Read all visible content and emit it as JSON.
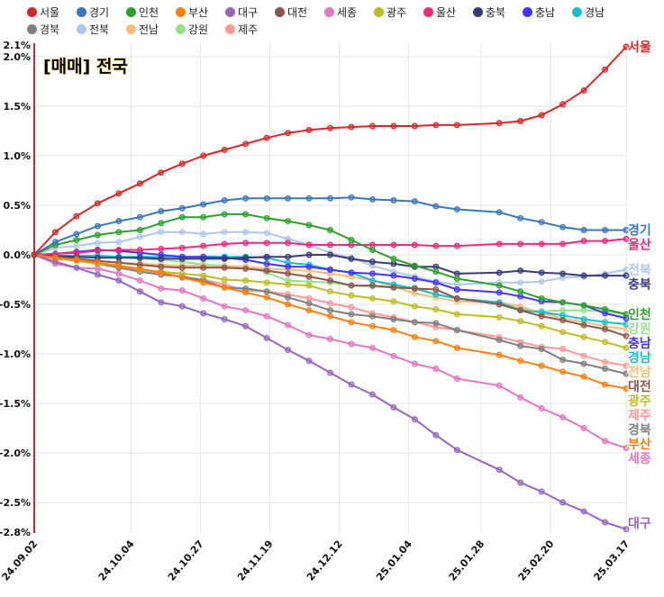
{
  "chart_data": {
    "type": "line",
    "title": "[매매] 전국",
    "ylim": [
      -2.8,
      2.1
    ],
    "y_ticks": [
      "2.1%",
      "2.0%",
      "1.5%",
      "1.0%",
      "0.5%",
      "0.0%",
      "-0.5%",
      "-1.0%",
      "-1.5%",
      "-2.0%",
      "-2.5%",
      "-2.8%"
    ],
    "y_tick_values": [
      2.1,
      2.0,
      1.5,
      1.0,
      0.5,
      0.0,
      -0.5,
      -1.0,
      -1.5,
      -2.0,
      -2.5,
      -2.8
    ],
    "x_ticks": [
      "24.09.02",
      "24.10.04",
      "24.10.27",
      "24.11.19",
      "24.12.12",
      "25.01.04",
      "25.01.28",
      "25.02.20",
      "25.03.17"
    ],
    "grid": true,
    "legend_position": "top",
    "x": [
      "24.09.02",
      "24.09.09",
      "24.09.16",
      "24.09.23",
      "24.09.30",
      "24.10.07",
      "24.10.14",
      "24.10.21",
      "24.10.28",
      "24.11.04",
      "24.11.11",
      "24.11.18",
      "24.11.25",
      "24.12.02",
      "24.12.09",
      "24.12.16",
      "24.12.23",
      "24.12.30",
      "25.01.06",
      "25.01.13",
      "25.01.20",
      "25.02.03",
      "25.02.10",
      "25.02.17",
      "25.02.24",
      "25.03.03",
      "25.03.10",
      "25.03.17"
    ],
    "series": [
      {
        "name": "서울",
        "color": "#d62728",
        "values": [
          0,
          0.23,
          0.39,
          0.52,
          0.62,
          0.72,
          0.83,
          0.92,
          1.0,
          1.06,
          1.12,
          1.18,
          1.23,
          1.26,
          1.28,
          1.29,
          1.3,
          1.3,
          1.3,
          1.31,
          1.31,
          1.33,
          1.35,
          1.41,
          1.52,
          1.66,
          1.87,
          2.1
        ]
      },
      {
        "name": "경기",
        "color": "#3a78b5",
        "values": [
          0,
          0.13,
          0.21,
          0.29,
          0.34,
          0.38,
          0.44,
          0.47,
          0.51,
          0.55,
          0.57,
          0.57,
          0.57,
          0.57,
          0.57,
          0.58,
          0.56,
          0.55,
          0.54,
          0.49,
          0.46,
          0.43,
          0.37,
          0.33,
          0.28,
          0.25,
          0.25,
          0.25
        ]
      },
      {
        "name": "인천",
        "color": "#2ca02c",
        "values": [
          0,
          0.1,
          0.15,
          0.2,
          0.23,
          0.25,
          0.32,
          0.38,
          0.38,
          0.41,
          0.41,
          0.37,
          0.34,
          0.3,
          0.25,
          0.15,
          0.05,
          -0.04,
          -0.11,
          -0.17,
          -0.24,
          -0.31,
          -0.37,
          -0.44,
          -0.48,
          -0.51,
          -0.55,
          -0.6
        ]
      },
      {
        "name": "부산",
        "color": "#ff7f0e",
        "values": [
          0,
          -0.03,
          -0.05,
          -0.08,
          -0.11,
          -0.14,
          -0.18,
          -0.23,
          -0.28,
          -0.33,
          -0.38,
          -0.43,
          -0.5,
          -0.56,
          -0.62,
          -0.68,
          -0.72,
          -0.76,
          -0.83,
          -0.87,
          -0.94,
          -1.01,
          -1.07,
          -1.12,
          -1.18,
          -1.23,
          -1.31,
          -1.35
        ]
      },
      {
        "name": "대구",
        "color": "#9467bd",
        "values": [
          0,
          -0.07,
          -0.13,
          -0.2,
          -0.26,
          -0.37,
          -0.48,
          -0.52,
          -0.59,
          -0.65,
          -0.72,
          -0.84,
          -0.96,
          -1.07,
          -1.19,
          -1.31,
          -1.41,
          -1.54,
          -1.66,
          -1.82,
          -1.97,
          -2.17,
          -2.3,
          -2.39,
          -2.5,
          -2.59,
          -2.7,
          -2.77
        ]
      },
      {
        "name": "대전",
        "color": "#8c564b",
        "values": [
          0,
          -0.02,
          -0.04,
          -0.06,
          -0.08,
          -0.1,
          -0.12,
          -0.13,
          -0.13,
          -0.13,
          -0.14,
          -0.16,
          -0.19,
          -0.22,
          -0.26,
          -0.31,
          -0.31,
          -0.33,
          -0.34,
          -0.35,
          -0.44,
          -0.5,
          -0.56,
          -0.62,
          -0.66,
          -0.71,
          -0.75,
          -0.82
        ]
      },
      {
        "name": "세종",
        "color": "#e377c2",
        "values": [
          0,
          -0.09,
          -0.13,
          -0.14,
          -0.19,
          -0.26,
          -0.34,
          -0.36,
          -0.44,
          -0.52,
          -0.56,
          -0.62,
          -0.71,
          -0.81,
          -0.85,
          -0.9,
          -0.94,
          -1.02,
          -1.1,
          -1.15,
          -1.25,
          -1.32,
          -1.44,
          -1.55,
          -1.64,
          -1.75,
          -1.88,
          -1.95
        ]
      },
      {
        "name": "광주",
        "color": "#bcbd22",
        "values": [
          0,
          -0.03,
          -0.06,
          -0.09,
          -0.11,
          -0.15,
          -0.17,
          -0.19,
          -0.21,
          -0.25,
          -0.26,
          -0.28,
          -0.3,
          -0.31,
          -0.37,
          -0.41,
          -0.44,
          -0.47,
          -0.52,
          -0.55,
          -0.6,
          -0.63,
          -0.67,
          -0.72,
          -0.78,
          -0.83,
          -0.88,
          -0.94
        ]
      },
      {
        "name": "울산",
        "color": "#ee2a7b",
        "values": [
          0,
          0.01,
          0.02,
          0.04,
          0.05,
          0.05,
          0.06,
          0.07,
          0.09,
          0.11,
          0.12,
          0.12,
          0.12,
          0.1,
          0.1,
          0.1,
          0.1,
          0.1,
          0.1,
          0.09,
          0.09,
          0.11,
          0.11,
          0.11,
          0.11,
          0.14,
          0.14,
          0.16
        ]
      },
      {
        "name": "충북",
        "color": "#393b79",
        "values": [
          0,
          -0.01,
          -0.02,
          -0.03,
          -0.03,
          -0.03,
          -0.04,
          -0.04,
          -0.04,
          -0.04,
          -0.03,
          -0.02,
          -0.02,
          0.0,
          0.0,
          -0.04,
          -0.07,
          -0.09,
          -0.12,
          -0.12,
          -0.19,
          -0.18,
          -0.16,
          -0.18,
          -0.19,
          -0.21,
          -0.21,
          -0.21
        ]
      },
      {
        "name": "충남",
        "color": "#4433ff",
        "values": [
          0,
          0.01,
          0.03,
          0.05,
          0.04,
          0.02,
          0.0,
          -0.02,
          -0.02,
          -0.03,
          -0.05,
          -0.09,
          -0.12,
          -0.12,
          -0.15,
          -0.18,
          -0.19,
          -0.21,
          -0.24,
          -0.28,
          -0.35,
          -0.38,
          -0.42,
          -0.47,
          -0.48,
          -0.51,
          -0.59,
          -0.64
        ]
      },
      {
        "name": "경남",
        "color": "#17becf",
        "values": [
          0,
          -0.01,
          -0.01,
          -0.01,
          -0.02,
          -0.02,
          -0.02,
          -0.02,
          -0.02,
          -0.02,
          -0.02,
          -0.03,
          -0.08,
          -0.1,
          -0.15,
          -0.18,
          -0.26,
          -0.3,
          -0.34,
          -0.4,
          -0.44,
          -0.48,
          -0.56,
          -0.58,
          -0.61,
          -0.65,
          -0.68,
          -0.7
        ]
      },
      {
        "name": "경북",
        "color": "#7f7f7f",
        "values": [
          0,
          -0.03,
          -0.06,
          -0.09,
          -0.13,
          -0.17,
          -0.2,
          -0.22,
          -0.26,
          -0.33,
          -0.34,
          -0.37,
          -0.43,
          -0.49,
          -0.56,
          -0.6,
          -0.62,
          -0.65,
          -0.68,
          -0.69,
          -0.76,
          -0.86,
          -0.92,
          -0.95,
          -1.06,
          -1.1,
          -1.15,
          -1.2
        ]
      },
      {
        "name": "전북",
        "color": "#aec7e8",
        "values": [
          0,
          0.07,
          0.09,
          0.12,
          0.13,
          0.18,
          0.23,
          0.23,
          0.21,
          0.23,
          0.23,
          0.22,
          0.16,
          0.1,
          0.02,
          -0.03,
          -0.11,
          -0.17,
          -0.22,
          -0.27,
          -0.3,
          -0.28,
          -0.28,
          -0.27,
          -0.23,
          -0.22,
          -0.19,
          -0.15
        ]
      },
      {
        "name": "전남",
        "color": "#ffbb78",
        "values": [
          0,
          -0.03,
          -0.05,
          -0.06,
          -0.08,
          -0.09,
          -0.1,
          -0.11,
          -0.11,
          -0.12,
          -0.12,
          -0.14,
          -0.15,
          -0.16,
          -0.19,
          -0.22,
          -0.26,
          -0.32,
          -0.39,
          -0.43,
          -0.47,
          -0.48,
          -0.52,
          -0.59,
          -0.64,
          -0.68,
          -0.72,
          -0.75
        ]
      },
      {
        "name": "강원",
        "color": "#98df8a",
        "values": [
          0,
          -0.01,
          -0.02,
          -0.01,
          -0.02,
          -0.04,
          -0.05,
          -0.07,
          -0.1,
          -0.11,
          -0.12,
          -0.18,
          -0.26,
          -0.27,
          -0.28,
          -0.31,
          -0.32,
          -0.33,
          -0.33,
          -0.4,
          -0.44,
          -0.48,
          -0.55,
          -0.57,
          -0.56,
          -0.56,
          -0.57,
          -0.6
        ]
      },
      {
        "name": "제주",
        "color": "#ff9896",
        "values": [
          0,
          -0.04,
          -0.06,
          -0.08,
          -0.12,
          -0.15,
          -0.18,
          -0.22,
          -0.25,
          -0.3,
          -0.36,
          -0.37,
          -0.4,
          -0.44,
          -0.49,
          -0.53,
          -0.59,
          -0.63,
          -0.68,
          -0.73,
          -0.76,
          -0.83,
          -0.88,
          -0.93,
          -0.95,
          -1.02,
          -1.08,
          -1.12
        ]
      }
    ]
  }
}
